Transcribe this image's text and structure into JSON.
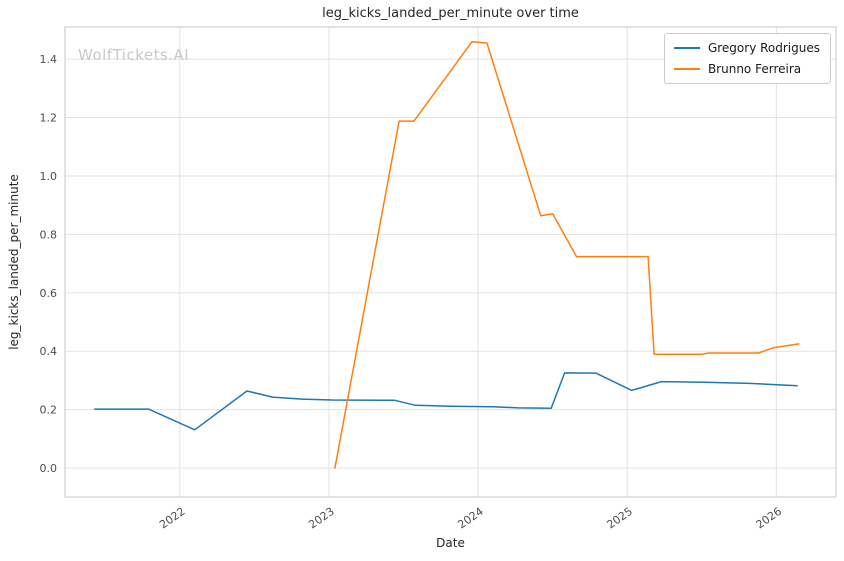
{
  "watermark": "WolfTickets.AI",
  "colors": {
    "series_blue": "#1f77b4",
    "series_orange": "#ff7f0e",
    "grid": "#e2e2e2",
    "spine": "#cfcfcf",
    "tick_label": "#4d4d4d",
    "title": "#262626",
    "watermark": "#c9c9c9"
  },
  "chart_data": {
    "type": "line",
    "title": "leg_kicks_landed_per_minute over time",
    "xlabel": "Date",
    "ylabel": "leg_kicks_landed_per_minute",
    "xlim": [
      2021.23,
      2026.4
    ],
    "ylim": [
      -0.099,
      1.51
    ],
    "x_ticks": [
      2022,
      2023,
      2024,
      2025,
      2026
    ],
    "x_tick_labels": [
      "2022",
      "2023",
      "2024",
      "2025",
      "2026"
    ],
    "y_ticks": [
      0.0,
      0.2,
      0.4,
      0.6,
      0.8,
      1.0,
      1.2,
      1.4
    ],
    "y_tick_labels": [
      "0.0",
      "0.2",
      "0.4",
      "0.6",
      "0.8",
      "1.0",
      "1.2",
      "1.4"
    ],
    "grid": true,
    "legend_position": "upper right",
    "series": [
      {
        "name": "Gregory Rodrigues",
        "color": "#1f77b4",
        "points": [
          [
            2021.43,
            0.202
          ],
          [
            2021.62,
            0.202
          ],
          [
            2021.79,
            0.202
          ],
          [
            2022.1,
            0.131
          ],
          [
            2022.45,
            0.264
          ],
          [
            2022.62,
            0.243
          ],
          [
            2022.82,
            0.236
          ],
          [
            2023.02,
            0.233
          ],
          [
            2023.44,
            0.232
          ],
          [
            2023.58,
            0.215
          ],
          [
            2023.82,
            0.212
          ],
          [
            2024.1,
            0.21
          ],
          [
            2024.27,
            0.206
          ],
          [
            2024.49,
            0.205
          ],
          [
            2024.58,
            0.326
          ],
          [
            2024.79,
            0.325
          ],
          [
            2025.03,
            0.266
          ],
          [
            2025.23,
            0.296
          ],
          [
            2025.52,
            0.294
          ],
          [
            2025.82,
            0.29
          ],
          [
            2026.14,
            0.282
          ]
        ]
      },
      {
        "name": "Brunno Ferreira",
        "color": "#ff7f0e",
        "points": [
          [
            2023.04,
            0.0
          ],
          [
            2023.47,
            1.188
          ],
          [
            2023.57,
            1.188
          ],
          [
            2023.96,
            1.46
          ],
          [
            2024.06,
            1.455
          ],
          [
            2024.42,
            0.864
          ],
          [
            2024.5,
            0.871
          ],
          [
            2024.66,
            0.724
          ],
          [
            2025.14,
            0.724
          ],
          [
            2025.18,
            0.39
          ],
          [
            2025.5,
            0.39
          ],
          [
            2025.55,
            0.394
          ],
          [
            2025.88,
            0.394
          ],
          [
            2025.98,
            0.412
          ],
          [
            2026.15,
            0.425
          ]
        ]
      }
    ]
  }
}
